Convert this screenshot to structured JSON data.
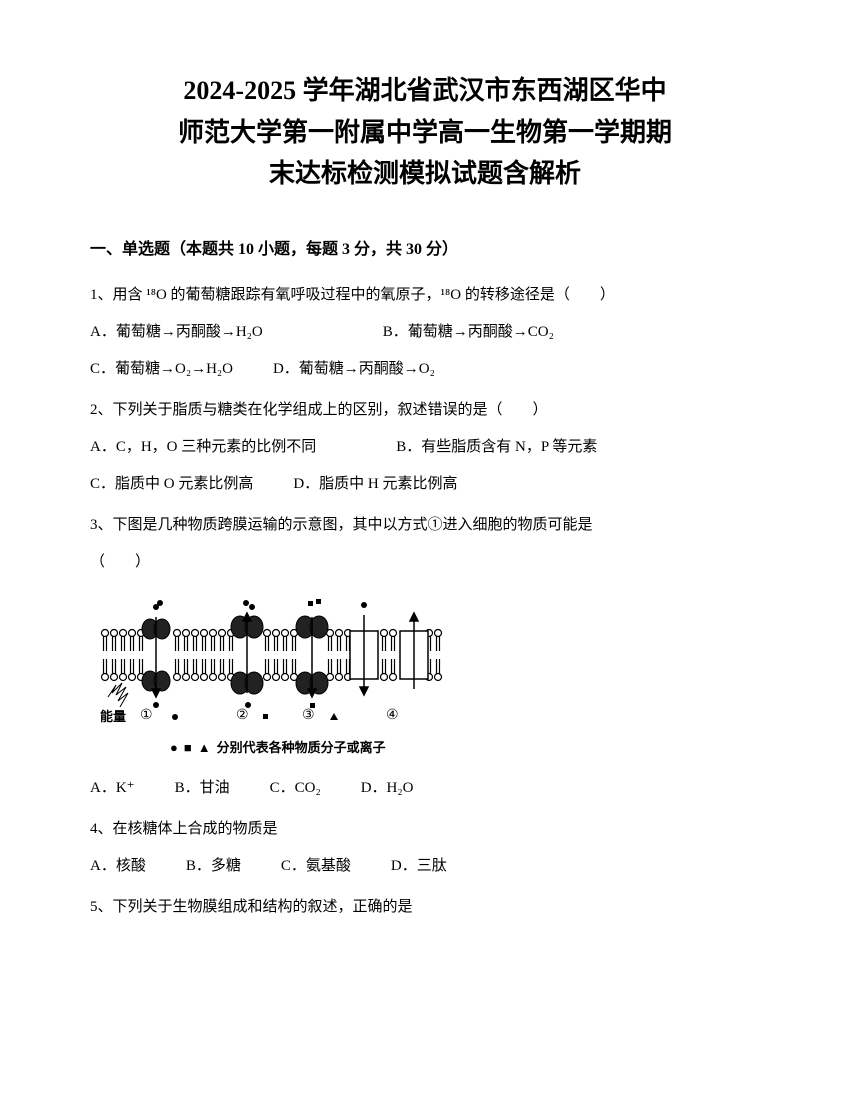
{
  "title_line1": "2024-2025 学年湖北省武汉市东西湖区华中",
  "title_line2": "师范大学第一附属中学高一生物第一学期期",
  "title_line3": "末达标检测模拟试题含解析",
  "section1_header": "一、单选题（本题共 10 小题，每题 3 分，共 30 分）",
  "q1": {
    "text": "1、用含 ¹⁸O 的葡萄糖跟踪有氧呼吸过程中的氧原子，¹⁸O 的转移途径是（　　）",
    "optA": "A．葡萄糖→丙酮酸→H₂O",
    "optB": "B．葡萄糖→丙酮酸→CO₂",
    "optC": "C．葡萄糖→O₂→H₂O",
    "optD": "D．葡萄糖→丙酮酸→O₂"
  },
  "q2": {
    "text": "2、下列关于脂质与糖类在化学组成上的区别，叙述错误的是（　　）",
    "optA": "A．C，H，O 三种元素的比例不同",
    "optB": "B．有些脂质含有 N，P 等元素",
    "optC": "C．脂质中 O 元素比例高",
    "optD": "D．脂质中 H 元素比例高"
  },
  "q3": {
    "text1": "3、下图是几种物质跨膜运输的示意图，其中以方式①进入细胞的物质可能是",
    "text2": "（　　）",
    "caption": "分别代表各种物质分子或离子",
    "optA": "A．K⁺",
    "optB": "B．甘油",
    "optC": "C．CO₂",
    "optD": "D．H₂O"
  },
  "q4": {
    "text": "4、在核糖体上合成的物质是",
    "optA": "A．核酸",
    "optB": "B．多糖",
    "optC": "C．氨基酸",
    "optD": "D．三肽"
  },
  "q5": {
    "text": "5、下列关于生物膜组成和结构的叙述，正确的是"
  },
  "diagram": {
    "energy_label": "能量",
    "numbers": [
      "①",
      "②",
      "③",
      "④"
    ],
    "colors": {
      "membrane_stroke": "#000000",
      "membrane_fill": "#ffffff",
      "protein_fill": "#333333",
      "line_width": 1.2
    }
  }
}
